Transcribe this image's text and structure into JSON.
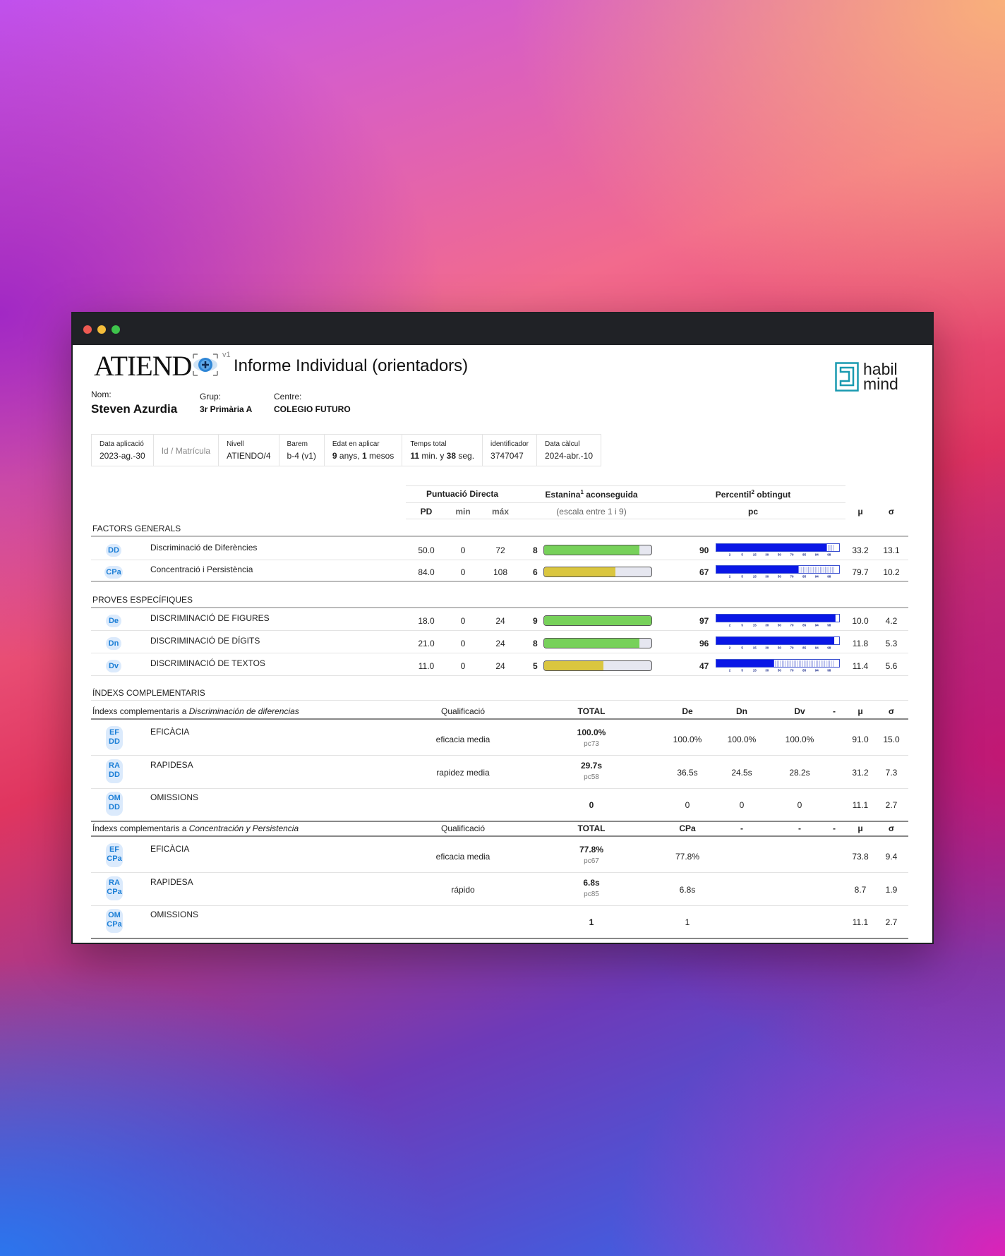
{
  "header": {
    "logo_text": "ATIEND",
    "version": "v1",
    "title": "Informe Individual (orientadors)",
    "brand_line1": "habil",
    "brand_line2": "mind"
  },
  "student": {
    "name_label": "Nom:",
    "name": "Steven Azurdia",
    "group_label": "Grup:",
    "group": "3r Primària A",
    "center_label": "Centre:",
    "center": "COLEGIO FUTURO"
  },
  "info": {
    "date_label": "Data aplicació",
    "date": "2023-ag.-30",
    "id_placeholder": "Id / Matrícula",
    "level_label": "Nivell",
    "level": "ATIENDO/4",
    "barem_label": "Barem",
    "barem": "b-4 (v1)",
    "age_label": "Edat en aplicar",
    "age_years": "9",
    "age_years_unit": " anys, ",
    "age_months": "1",
    "age_months_unit": " mesos",
    "time_label": "Temps total",
    "time_min": "11",
    "time_min_unit": " min. y ",
    "time_sec": "38",
    "time_sec_unit": " seg.",
    "ident_label": "identificador",
    "ident": "3747047",
    "calc_label": "Data càlcul",
    "calc": "2024-abr.-10"
  },
  "columns": {
    "pd_group": "Puntuació Directa",
    "stanine_group": "Estanina",
    "stanine_sup": "1",
    "stanine_group_rest": " aconseguida",
    "pct_group": "Percentil",
    "pct_sup": "2",
    "pct_group_rest": " obtingut",
    "pd": "PD",
    "min": "min",
    "max": "máx",
    "stanine_scale": "(escala entre 1 i 9)",
    "pc": "pc",
    "mu": "μ",
    "sigma": "σ"
  },
  "sections": {
    "general": "FACTORS GENERALS",
    "specific": "PROVES ESPECÍFIQUES",
    "complementary": "ÍNDEXS COMPLEMENTARIS"
  },
  "tick_labels": [
    "2",
    "5",
    "15",
    "30",
    "50",
    "70",
    "85",
    "94",
    "98"
  ],
  "colors": {
    "green": "#77d15a",
    "yellow": "#dac63f",
    "blue": "#0a17e6",
    "badge_bg": "#dbeafc",
    "badge_text": "#1c7fd6"
  },
  "factors": [
    {
      "code": "DD",
      "name": "Discriminació de Diferències",
      "pd": "50.0",
      "min": "0",
      "max": "72",
      "stanine": "8",
      "stanine_value": 8,
      "stanine_color": "green",
      "pc": "90",
      "pc_value": 90,
      "mu": "33.2",
      "sigma": "13.1"
    },
    {
      "code": "CPa",
      "name": "Concentració i Persistència",
      "pd": "84.0",
      "min": "0",
      "max": "108",
      "stanine": "6",
      "stanine_value": 6,
      "stanine_color": "yellow",
      "pc": "67",
      "pc_value": 67,
      "mu": "79.7",
      "sigma": "10.2"
    }
  ],
  "specific": [
    {
      "code": "De",
      "name": "DISCRIMINACIÓ DE FIGURES",
      "pd": "18.0",
      "min": "0",
      "max": "24",
      "stanine": "9",
      "stanine_value": 9,
      "stanine_color": "green",
      "pc": "97",
      "pc_value": 97,
      "mu": "10.0",
      "sigma": "4.2"
    },
    {
      "code": "Dn",
      "name": "DISCRIMINACIÓ DE DÍGITS",
      "pd": "21.0",
      "min": "0",
      "max": "24",
      "stanine": "8",
      "stanine_value": 8,
      "stanine_color": "green",
      "pc": "96",
      "pc_value": 96,
      "mu": "11.8",
      "sigma": "5.3"
    },
    {
      "code": "Dv",
      "name": "DISCRIMINACIÓ DE TEXTOS",
      "pd": "11.0",
      "min": "0",
      "max": "24",
      "stanine": "5",
      "stanine_value": 5,
      "stanine_color": "yellow",
      "pc": "47",
      "pc_value": 47,
      "mu": "11.4",
      "sigma": "5.6"
    }
  ],
  "complementary_dd": {
    "title_prefix": "Índexs complementaris a ",
    "title_italic": "Discriminación de diferencias",
    "qual": "Qualificació",
    "total": "TOTAL",
    "c1": "De",
    "c2": "Dn",
    "c3": "Dv",
    "c4": "-",
    "mu": "μ",
    "sigma": "σ",
    "rows": [
      {
        "code1": "EF",
        "code2": "DD",
        "name": "EFICÀCIA",
        "qual": "eficacia media",
        "total": "100.0%",
        "pc": "pc73",
        "v1": "100.0%",
        "v2": "100.0%",
        "v3": "100.0%",
        "mu": "91.0",
        "sigma": "15.0"
      },
      {
        "code1": "RA",
        "code2": "DD",
        "name": "RAPIDESA",
        "qual": "rapidez media",
        "total": "29.7s",
        "pc": "pc58",
        "v1": "36.5s",
        "v2": "24.5s",
        "v3": "28.2s",
        "mu": "31.2",
        "sigma": "7.3"
      },
      {
        "code1": "OM",
        "code2": "DD",
        "name": "OMISSIONS",
        "qual": "",
        "total": "0",
        "pc": "",
        "v1": "0",
        "v2": "0",
        "v3": "0",
        "mu": "11.1",
        "sigma": "2.7"
      }
    ]
  },
  "complementary_cpa": {
    "title_prefix": "Índexs complementaris a ",
    "title_italic": "Concentración y Persistencia",
    "qual": "Qualificació",
    "total": "TOTAL",
    "c1": "CPa",
    "c2": "-",
    "c3": "-",
    "c4": "-",
    "mu": "μ",
    "sigma": "σ",
    "rows": [
      {
        "code1": "EF",
        "code2": "CPa",
        "name": "EFICÀCIA",
        "qual": "eficacia media",
        "total": "77.8%",
        "pc": "pc67",
        "v1": "77.8%",
        "mu": "73.8",
        "sigma": "9.4"
      },
      {
        "code1": "RA",
        "code2": "CPa",
        "name": "RAPIDESA",
        "qual": "rápido",
        "total": "6.8s",
        "pc": "pc85",
        "v1": "6.8s",
        "mu": "8.7",
        "sigma": "1.9"
      },
      {
        "code1": "OM",
        "code2": "CPa",
        "name": "OMISSIONS",
        "qual": "",
        "total": "1",
        "pc": "",
        "v1": "1",
        "mu": "11.1",
        "sigma": "2.7"
      }
    ]
  }
}
